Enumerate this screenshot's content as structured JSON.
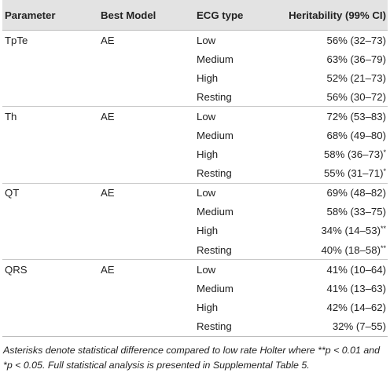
{
  "table": {
    "headers": [
      "Parameter",
      "Best Model",
      "ECG type",
      "Heritability (99% CI)"
    ],
    "groups": [
      {
        "parameter": "TpTe",
        "model": "AE",
        "rows": [
          {
            "ecg": "Low",
            "value": "56% (32–73)",
            "sup": ""
          },
          {
            "ecg": "Medium",
            "value": "63% (36–79)",
            "sup": ""
          },
          {
            "ecg": "High",
            "value": "52% (21–73)",
            "sup": ""
          },
          {
            "ecg": "Resting",
            "value": "56% (30–72)",
            "sup": ""
          }
        ]
      },
      {
        "parameter": "Th",
        "model": "AE",
        "rows": [
          {
            "ecg": "Low",
            "value": "72% (53–83)",
            "sup": ""
          },
          {
            "ecg": "Medium",
            "value": "68% (49–80)",
            "sup": ""
          },
          {
            "ecg": "High",
            "value": "58% (36–73)",
            "sup": "*"
          },
          {
            "ecg": "Resting",
            "value": "55% (31–71)",
            "sup": "*"
          }
        ]
      },
      {
        "parameter": "QT",
        "model": "AE",
        "rows": [
          {
            "ecg": "Low",
            "value": "69% (48–82)",
            "sup": ""
          },
          {
            "ecg": "Medium",
            "value": "58% (33–75)",
            "sup": ""
          },
          {
            "ecg": "High",
            "value": "34% (14–53)",
            "sup": "**"
          },
          {
            "ecg": "Resting",
            "value": "40% (18–58)",
            "sup": "**"
          }
        ]
      },
      {
        "parameter": "QRS",
        "model": "AE",
        "rows": [
          {
            "ecg": "Low",
            "value": "41% (10–64)",
            "sup": ""
          },
          {
            "ecg": "Medium",
            "value": "41% (13–63)",
            "sup": ""
          },
          {
            "ecg": "High",
            "value": "42% (14–62)",
            "sup": ""
          },
          {
            "ecg": "Resting",
            "value": "32% (7–55)",
            "sup": ""
          }
        ]
      }
    ]
  },
  "footnote": "Asterisks denote statistical difference compared to low rate Holter where **p < 0.01 and *p < 0.05. Full statistical analysis is presented in Supplemental Table 5."
}
